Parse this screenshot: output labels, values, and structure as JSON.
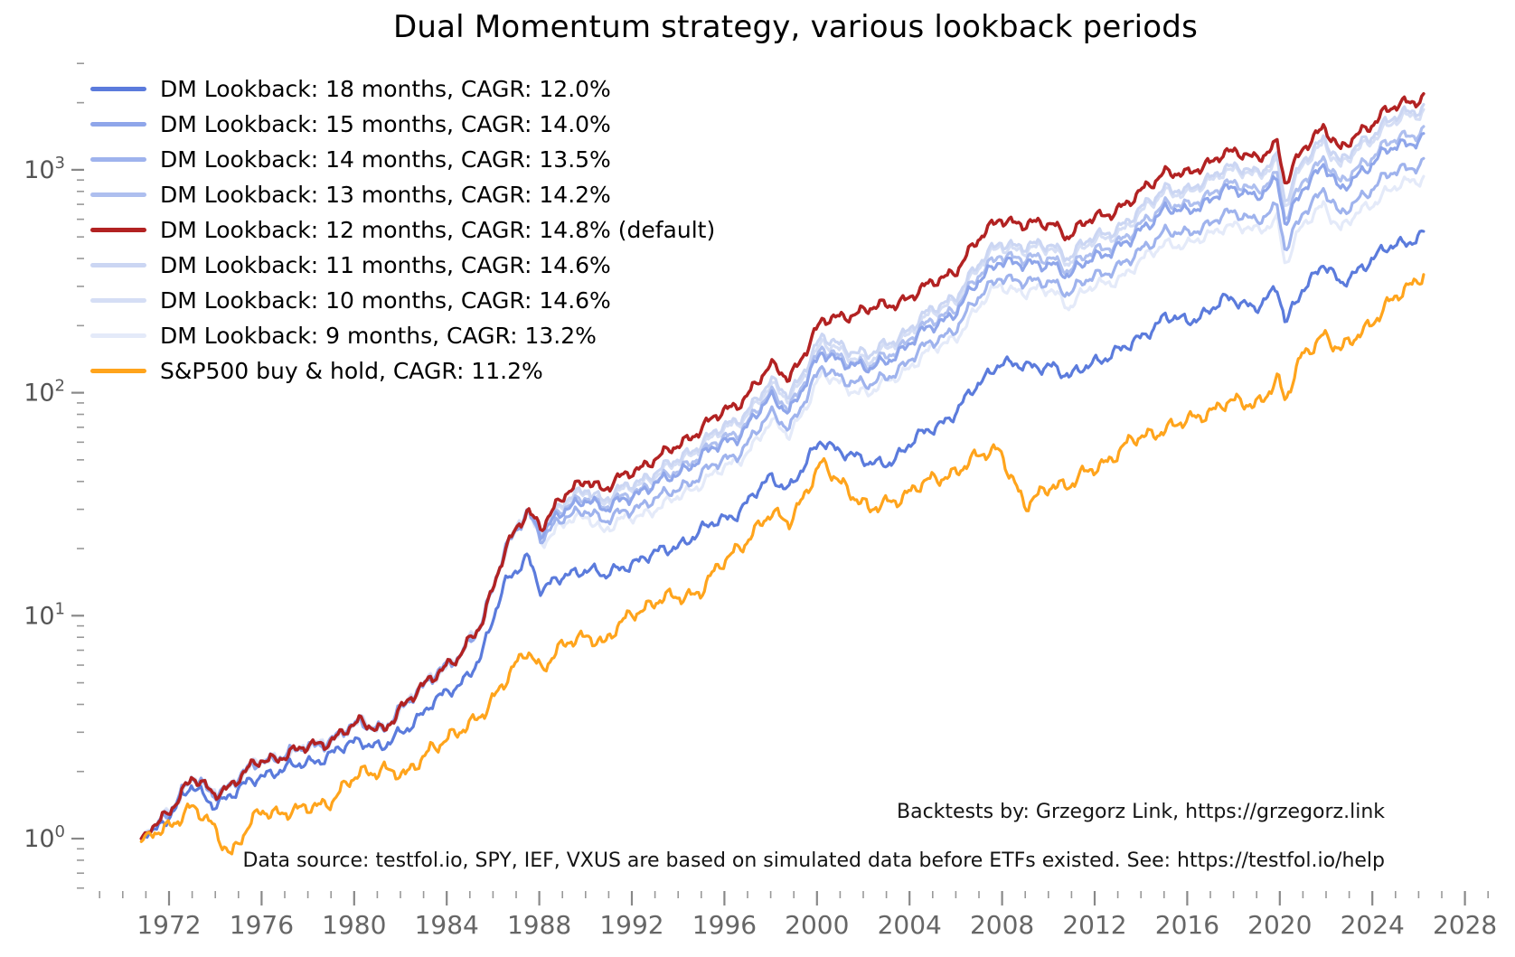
{
  "title": "Dual Momentum strategy, various lookback periods",
  "annotations": {
    "backtests": "Backtests by: Grzegorz Link, https://grzegorz.link",
    "data_source": "Data source: testfol.io, SPY, IEF, VXUS are based on simulated data before ETFs existed. See: https://testfol.io/help"
  },
  "axes": {
    "x": {
      "major_tick_years": [
        1972,
        1976,
        1980,
        1984,
        1988,
        1992,
        1996,
        2000,
        2004,
        2008,
        2012,
        2016,
        2020,
        2024,
        2028
      ],
      "minor_tick_step_years": 1,
      "minor_tick_range": [
        1969,
        2029
      ],
      "label_color": "#666666",
      "tick_color": "#888888"
    },
    "y": {
      "scale": "log10",
      "major_tick_exponents": [
        0,
        1,
        2,
        3
      ],
      "label_base": "10",
      "minor_ticks_mantissas": [
        2,
        3,
        4,
        5,
        6,
        7,
        8,
        9
      ],
      "value_range": [
        0.58,
        3200
      ],
      "label_color": "#555555",
      "tick_color": "#888888"
    }
  },
  "chart_data": {
    "type": "line",
    "title": "Dual Momentum strategy, various lookback periods",
    "xlabel": "",
    "ylabel": "",
    "x_years": [
      1970.8,
      1971.6,
      1973.0,
      1973.9,
      1974.7,
      1976.0,
      1977.5,
      1979.0,
      1980.3,
      1981.3,
      1982.2,
      1983.3,
      1984.5,
      1985.5,
      1986.5,
      1987.5,
      1988.1,
      1989.3,
      1990.1,
      1990.8,
      1992.0,
      1993.5,
      1995.0,
      1996.5,
      1998.0,
      1998.8,
      2000.2,
      2001.2,
      2002.3,
      2003.2,
      2004.5,
      2006.0,
      2007.9,
      2009.0,
      2010.2,
      2010.9,
      2012.0,
      2013.5,
      2015.0,
      2016.0,
      2017.5,
      2018.9,
      2019.9,
      2020.25,
      2021.0,
      2021.9,
      2022.6,
      2023.5,
      2024.5,
      2025.3,
      2026.2
    ],
    "series": [
      {
        "key": "dm18",
        "lookback_months": 18,
        "cagr_pct": 12.0,
        "color": "#5B7BDC",
        "label": "DM Lookback: 18 months, CAGR: 12.0%",
        "values": [
          1.0,
          1.15,
          1.7,
          1.45,
          1.55,
          1.95,
          2.1,
          2.4,
          2.75,
          2.6,
          3.0,
          4.1,
          4.7,
          6.8,
          13.5,
          19,
          12.8,
          15.5,
          16.5,
          14.8,
          17.5,
          19.5,
          24,
          29,
          41,
          38,
          60,
          55,
          47,
          50,
          64,
          82,
          140,
          128,
          135,
          115,
          140,
          160,
          220,
          205,
          260,
          245,
          290,
          200,
          300,
          380,
          300,
          370,
          430,
          470,
          520
        ]
      },
      {
        "key": "dm15",
        "lookback_months": 15,
        "cagr_pct": 14.0,
        "color": "#8FA6EA",
        "label": "DM Lookback: 15 months, CAGR: 14.0%",
        "values": [
          1.0,
          1.2,
          1.85,
          1.6,
          1.75,
          2.25,
          2.45,
          2.8,
          3.3,
          3.15,
          3.9,
          5.4,
          6.3,
          9.5,
          19,
          30,
          23.5,
          30.6,
          34.4,
          29.2,
          35.1,
          40.3,
          51.8,
          63.4,
          93.6,
          83.8,
          148,
          140,
          125,
          145,
          182,
          234,
          403,
          366,
          386,
          330,
          412,
          469,
          680,
          632,
          816,
          768,
          898,
          546,
          838,
          1072,
          785,
          990,
          1188,
          1287,
          1419
        ]
      },
      {
        "key": "dm14",
        "lookback_months": 14,
        "cagr_pct": 13.5,
        "color": "#9FB3ED",
        "label": "DM Lookback: 14 months, CAGR: 13.5%",
        "values": [
          1.0,
          1.2,
          1.85,
          1.6,
          1.75,
          2.25,
          2.45,
          2.8,
          3.3,
          3.15,
          3.9,
          5.4,
          6.3,
          9.5,
          19,
          30,
          22.4,
          28.1,
          30.7,
          25.9,
          30.6,
          34.5,
          43.4,
          52.8,
          79.3,
          70.8,
          127,
          117,
          106,
          122,
          154,
          198,
          341,
          305,
          322,
          275,
          338,
          385,
          540,
          502,
          636,
          599,
          686,
          420,
          650,
          832,
          607,
          765,
          918,
          995,
          1097
        ]
      },
      {
        "key": "dm13",
        "lookback_months": 13,
        "cagr_pct": 14.2,
        "color": "#AEBFEF",
        "label": "DM Lookback: 13 months, CAGR: 14.2%",
        "values": [
          1.0,
          1.2,
          1.85,
          1.6,
          1.75,
          2.25,
          2.45,
          2.8,
          3.3,
          3.15,
          3.9,
          5.4,
          6.3,
          9.5,
          19,
          30,
          23.7,
          31.3,
          35.3,
          29.9,
          36,
          41.3,
          53.9,
          66,
          97.5,
          87.3,
          154,
          144,
          129,
          152,
          191,
          245,
          428,
          389,
          410,
          350,
          437,
          497,
          720,
          670,
          864,
          814,
          950,
          580,
          900,
          1152,
          845,
          1065,
          1278,
          1385,
          1527
        ]
      },
      {
        "key": "dm12",
        "lookback_months": 12,
        "cagr_pct": 14.8,
        "is_default": true,
        "color": "#B22222",
        "label": "DM Lookback: 12 months, CAGR: 14.8% (default)",
        "values": [
          1.0,
          1.2,
          1.85,
          1.6,
          1.75,
          2.25,
          2.45,
          2.8,
          3.3,
          3.15,
          3.9,
          5.4,
          6.3,
          9.5,
          19,
          30,
          25.5,
          36,
          42,
          36,
          45,
          53,
          70,
          88,
          130,
          118,
          205,
          225,
          235,
          250,
          285,
          360,
          620,
          555,
          585,
          500,
          615,
          700,
          1000,
          930,
          1200,
          1130,
          1320,
          840,
          1250,
          1600,
          1190,
          1500,
          1800,
          1950,
          2150
        ]
      },
      {
        "key": "dm11",
        "lookback_months": 11,
        "cagr_pct": 14.6,
        "color": "#CBD6F3",
        "label": "DM Lookback: 11 months, CAGR: 14.6%",
        "values": [
          1.0,
          1.2,
          1.85,
          1.6,
          1.75,
          2.25,
          2.45,
          2.8,
          3.3,
          3.15,
          3.9,
          5.4,
          6.3,
          9.5,
          19,
          30,
          24.7,
          33.5,
          38.2,
          32.4,
          39.6,
          46.1,
          60.2,
          74.8,
          110,
          99,
          174,
          162,
          146,
          170,
          214,
          277,
          484,
          444,
          468,
          405,
          504,
          581,
          850,
          781,
          1032,
          972,
          1148,
          697,
          1100,
          1424,
          1047,
          1335,
          1602,
          1755,
          1935
        ]
      },
      {
        "key": "dm10",
        "lookback_months": 10,
        "cagr_pct": 14.6,
        "color": "#D5DEF5",
        "label": "DM Lookback: 10 months, CAGR: 14.6%",
        "values": [
          1.0,
          1.2,
          1.85,
          1.6,
          1.75,
          2.25,
          2.45,
          2.8,
          3.3,
          3.15,
          3.9,
          5.4,
          6.3,
          9.5,
          19,
          30,
          24.2,
          32.4,
          37,
          31.3,
          38.3,
          44.5,
          58.1,
          72.2,
          105,
          94,
          164,
          153,
          136,
          163,
          205,
          266,
          465,
          427,
          450,
          385,
          480,
          553,
          820,
          753,
          996,
          938,
          1096,
          664,
          1050,
          1360,
          1000,
          1275,
          1530,
          1677,
          1849
        ]
      },
      {
        "key": "dm9",
        "lookback_months": 9,
        "cagr_pct": 13.2,
        "color": "#E4EAF9",
        "label": "DM Lookback: 9 months, CAGR: 13.2%",
        "values": [
          1.0,
          1.2,
          1.85,
          1.6,
          1.75,
          2.25,
          2.45,
          2.8,
          3.3,
          3.15,
          3.9,
          5.4,
          6.3,
          9.5,
          19,
          30,
          21.7,
          26.3,
          28.6,
          23.8,
          27.9,
          31.3,
          39.9,
          48.4,
          72.8,
          64.9,
          119,
          108,
          98.7,
          115,
          143,
          180,
          310,
          278,
          293,
          245,
          301,
          343,
          480,
          446,
          564,
          531,
          607,
          370,
          563,
          720,
          524,
          660,
          783,
          848,
          935
        ]
      },
      {
        "key": "sp500",
        "cagr_pct": 11.2,
        "color": "#FFA41C",
        "label": "S&P500 buy & hold, CAGR: 11.2%",
        "values": [
          0.97,
          1.1,
          1.35,
          1.15,
          0.85,
          1.35,
          1.3,
          1.5,
          1.95,
          2.1,
          1.85,
          2.6,
          2.9,
          3.7,
          4.9,
          7.2,
          5.8,
          7.6,
          8.4,
          7.3,
          10.5,
          11.8,
          13,
          20,
          28,
          27,
          47,
          39,
          29,
          33,
          38,
          45,
          57,
          30,
          40,
          38,
          46,
          59,
          70,
          73,
          90,
          88,
          115,
          90,
          150,
          185,
          150,
          190,
          235,
          280,
          350
        ]
      }
    ],
    "layout": {
      "y_scale": "log",
      "grid": false,
      "legend_position": "upper left",
      "legend_order": [
        "dm18",
        "dm15",
        "dm14",
        "dm13",
        "dm12",
        "dm11",
        "dm10",
        "dm9",
        "sp500"
      ],
      "draw_order": [
        "dm9",
        "dm10",
        "dm11",
        "dm13",
        "dm14",
        "dm15",
        "dm18",
        "dm12",
        "sp500"
      ],
      "x_range_years": [
        1968.8,
        2029.8
      ],
      "y_range_values": [
        0.55,
        3400
      ],
      "wiggle_amp_log10": [
        0.011,
        0.016,
        0.012,
        0.005
      ]
    }
  }
}
